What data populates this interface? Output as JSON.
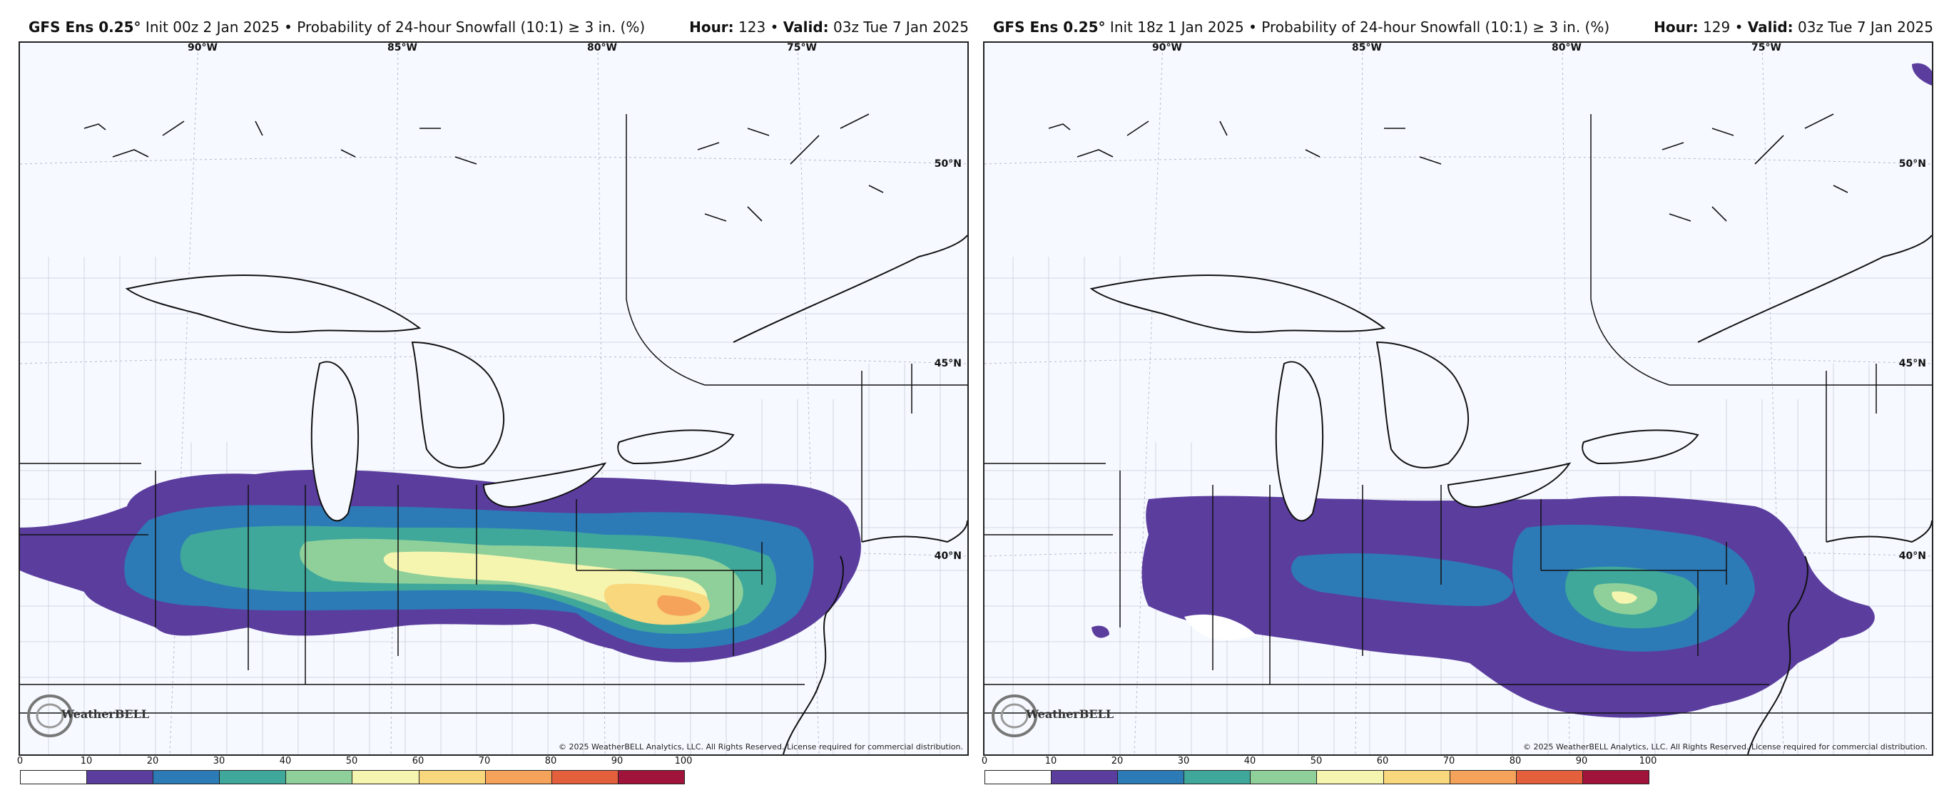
{
  "panels": [
    {
      "model": "GFS Ens 0.25°",
      "init": "Init 00z 2 Jan 2025",
      "sep": "•",
      "title": "Probability of 24-hour Snowfall (10:1) ≥ 3 in. (%)",
      "hour_label": "Hour:",
      "hour": "123",
      "valid_label": "Valid:",
      "valid": "03z Tue 7 Jan 2025"
    },
    {
      "model": "GFS Ens 0.25°",
      "init": "Init 18z 1 Jan 2025",
      "sep": "•",
      "title": "Probability of 24-hour Snowfall (10:1) ≥ 3 in. (%)",
      "hour_label": "Hour:",
      "hour": "129",
      "valid_label": "Valid:",
      "valid": "03z Tue 7 Jan 2025"
    }
  ],
  "lon_labels": [
    "90°W",
    "85°W",
    "80°W",
    "75°W"
  ],
  "lat_labels": [
    "50°N",
    "45°N",
    "40°N"
  ],
  "logo_text": "WeatherBELL",
  "copyright": "© 2025 WeatherBELL Analytics, LLC. All Rights Reserved. License required for commercial distribution.",
  "colorbar": {
    "ticks": [
      "0",
      "10",
      "20",
      "30",
      "40",
      "50",
      "60",
      "70",
      "80",
      "90",
      "100"
    ],
    "colors": [
      "#ffffff",
      "#5b3d9e",
      "#2d7bb6",
      "#3fa89b",
      "#8fd09a",
      "#f6f5b0",
      "#f8d77d",
      "#f5a25a",
      "#e4603c",
      "#a0143c"
    ]
  },
  "snow_colors": {
    "c10": "#5b3d9e",
    "c20": "#2d7bb6",
    "c30": "#3fa89b",
    "c40": "#8fd09a",
    "c50": "#f6f5b0",
    "c60": "#f8d77d",
    "c70": "#f5a25a"
  }
}
